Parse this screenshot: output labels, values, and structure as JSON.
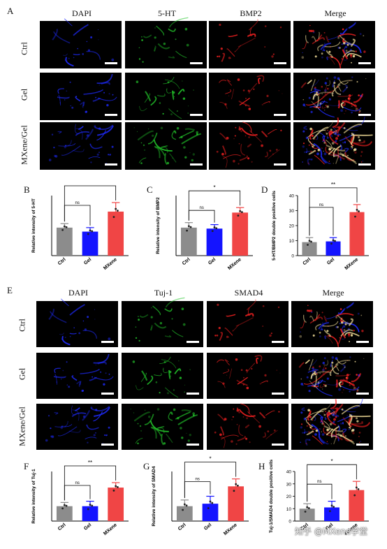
{
  "figure": {
    "panelA": {
      "letter": "A",
      "columns": [
        "DAPI",
        "5-HT",
        "BMP2",
        "Merge"
      ],
      "rows": [
        "Ctrl",
        "Gel",
        "MXene/Gel"
      ]
    },
    "panelE": {
      "letter": "E",
      "columns": [
        "DAPI",
        "Tuj-1",
        "SMAD4",
        "Merge"
      ],
      "rows": [
        "Ctrl",
        "Gel",
        "MXene/Gel"
      ]
    },
    "channel_colors": {
      "DAPI": "#1f2bff",
      "5-HT": "#22c42a",
      "Tuj-1": "#22c42a",
      "BMP2": "#ff2222",
      "SMAD4": "#ff2222",
      "merge_highlight": "#ffe9a0"
    },
    "bar_colors": [
      "#8c8c8c",
      "#1414ff",
      "#f04545"
    ],
    "watermark": "知乎 @MXene学堂"
  },
  "chart_data": [
    {
      "panel": "B",
      "type": "bar",
      "categories": [
        "Ctrl",
        "Gel",
        "MXene"
      ],
      "values": [
        28,
        24,
        44
      ],
      "errors": [
        4,
        4,
        9
      ],
      "ylabel": "Relative intensity of 5-HT",
      "ylim": [
        0,
        60
      ],
      "yticks": [],
      "show_yticks": false,
      "sig": [
        {
          "from": 0,
          "to": 1,
          "label": "ns"
        },
        {
          "from": 0,
          "to": 2,
          "label": ""
        }
      ]
    },
    {
      "panel": "C",
      "type": "bar",
      "categories": [
        "Ctrl",
        "Gel",
        "MXene"
      ],
      "values": [
        28,
        27,
        43
      ],
      "errors": [
        5,
        4,
        5
      ],
      "ylabel": "Relative intensity of BMP2",
      "ylim": [
        0,
        60
      ],
      "yticks": [],
      "show_yticks": false,
      "sig": [
        {
          "from": 0,
          "to": 1,
          "label": "ns"
        },
        {
          "from": 0,
          "to": 2,
          "label": "*"
        }
      ]
    },
    {
      "panel": "D",
      "type": "bar",
      "categories": [
        "Ctrl",
        "Gel",
        "MXene"
      ],
      "values": [
        9,
        9.5,
        29
      ],
      "errors": [
        3,
        2.5,
        5
      ],
      "ylabel": "5-HT/BMP2 double positive cells",
      "ylim": [
        0,
        40
      ],
      "yticks": [
        "0",
        "10",
        "20",
        "30",
        "40"
      ],
      "show_yticks": true,
      "sig": [
        {
          "from": 0,
          "to": 1,
          "label": "ns"
        },
        {
          "from": 0,
          "to": 2,
          "label": "**"
        }
      ]
    },
    {
      "panel": "F",
      "type": "bar",
      "categories": [
        "Ctrl",
        "Gel",
        "MXene"
      ],
      "values": [
        12,
        12,
        27
      ],
      "errors": [
        3,
        4,
        4
      ],
      "ylabel": "Relative intensity of Tuj-1",
      "ylim": [
        0,
        40
      ],
      "yticks": [],
      "show_yticks": false,
      "sig": [
        {
          "from": 0,
          "to": 1,
          "label": "ns"
        },
        {
          "from": 0,
          "to": 2,
          "label": "**"
        }
      ]
    },
    {
      "panel": "G",
      "type": "bar",
      "categories": [
        "Ctrl",
        "Gel",
        "MXene"
      ],
      "values": [
        12,
        14,
        28
      ],
      "errors": [
        5,
        6,
        6
      ],
      "ylabel": "Relative intensity of SMAD4",
      "ylim": [
        0,
        40
      ],
      "yticks": [],
      "show_yticks": false,
      "sig": [
        {
          "from": 0,
          "to": 1,
          "label": "ns"
        },
        {
          "from": 0,
          "to": 2,
          "label": "*"
        }
      ]
    },
    {
      "panel": "H",
      "type": "bar",
      "categories": [
        "Ctrl",
        "Gel",
        "MXene"
      ],
      "values": [
        10,
        11,
        25
      ],
      "errors": [
        4,
        5,
        7
      ],
      "ylabel": "Tuj-1/SMAD4 double positive cells",
      "ylim": [
        0,
        40
      ],
      "yticks": [
        "0",
        "10",
        "20",
        "30",
        "40"
      ],
      "show_yticks": true,
      "sig": [
        {
          "from": 0,
          "to": 1,
          "label": "ns"
        },
        {
          "from": 0,
          "to": 2,
          "label": "*"
        }
      ]
    }
  ]
}
